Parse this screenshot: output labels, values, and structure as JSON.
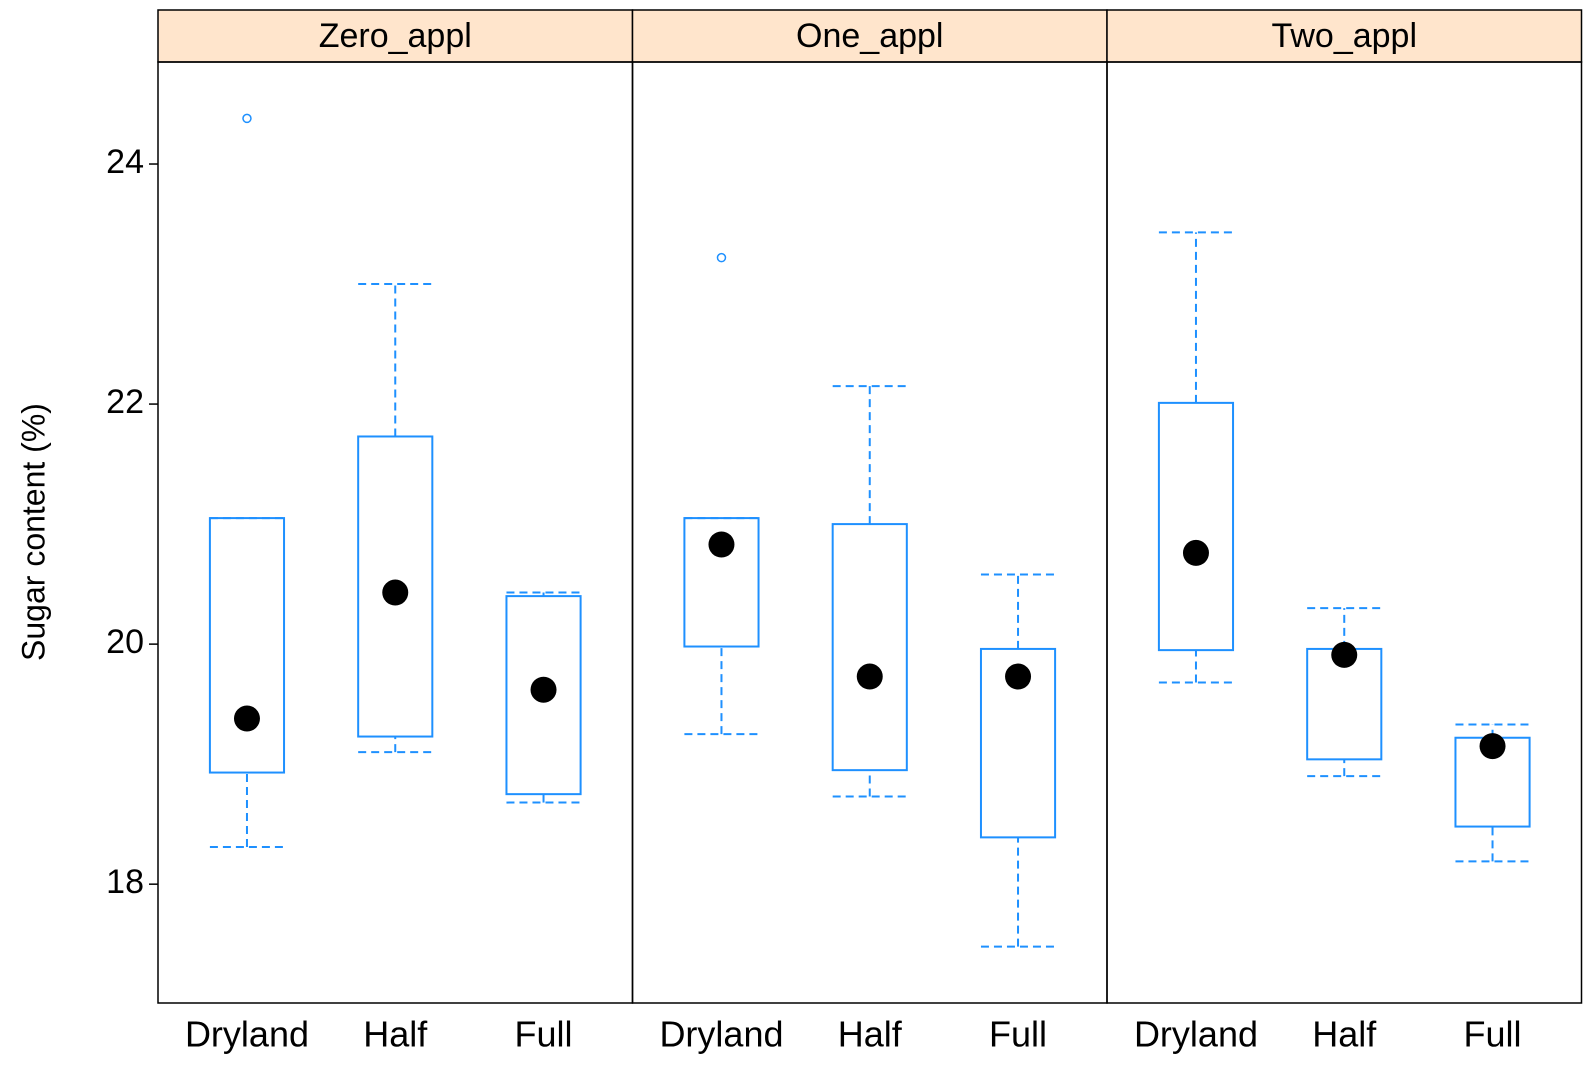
{
  "chart_data": {
    "type": "box",
    "ylabel": "Sugar content (%)",
    "ylim": [
      17.01,
      24.85
    ],
    "yticks": [
      18,
      20,
      22,
      24
    ],
    "box_color": "#1e90ff",
    "median_color": "#000000",
    "strip_color": "#ffe5cc",
    "panels": [
      {
        "title": "Zero_appl",
        "categories": [
          "Dryland",
          "Half",
          "Full"
        ],
        "boxes": [
          {
            "whislo": 18.31,
            "q1": 18.93,
            "med": 19.38,
            "q3": 21.05,
            "whishi": 21.05,
            "fliers": [
              24.38
            ]
          },
          {
            "whislo": 19.1,
            "q1": 19.23,
            "med": 20.43,
            "q3": 21.73,
            "whishi": 23.0,
            "fliers": []
          },
          {
            "whislo": 18.68,
            "q1": 18.75,
            "med": 19.62,
            "q3": 20.4,
            "whishi": 20.43,
            "fliers": []
          }
        ]
      },
      {
        "title": "One_appl",
        "categories": [
          "Dryland",
          "Half",
          "Full"
        ],
        "boxes": [
          {
            "whislo": 19.25,
            "q1": 19.98,
            "med": 20.83,
            "q3": 21.05,
            "whishi": 21.05,
            "fliers": [
              23.22
            ]
          },
          {
            "whislo": 18.73,
            "q1": 18.95,
            "med": 19.73,
            "q3": 21.0,
            "whishi": 22.15,
            "fliers": []
          },
          {
            "whislo": 17.48,
            "q1": 18.39,
            "med": 19.73,
            "q3": 19.96,
            "whishi": 20.58,
            "fliers": []
          }
        ]
      },
      {
        "title": "Two_appl",
        "categories": [
          "Dryland",
          "Half",
          "Full"
        ],
        "boxes": [
          {
            "whislo": 19.68,
            "q1": 19.95,
            "med": 20.76,
            "q3": 22.01,
            "whishi": 23.43,
            "fliers": []
          },
          {
            "whislo": 18.9,
            "q1": 19.04,
            "med": 19.91,
            "q3": 19.96,
            "whishi": 20.3,
            "fliers": []
          },
          {
            "whislo": 18.19,
            "q1": 18.48,
            "med": 19.15,
            "q3": 19.22,
            "whishi": 19.33,
            "fliers": []
          }
        ]
      }
    ]
  }
}
